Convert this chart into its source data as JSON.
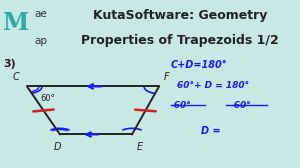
{
  "bg_color": "#c8e8e5",
  "header_bg": "#e0e0e0",
  "header_title_line1": "KutaSoftware: Geometry",
  "header_title_line2": "Properties of Trapezoids 1/2",
  "logo_M_color": "#2aaca0",
  "problem_number": "3)",
  "trap_C": [
    0.09,
    0.73
  ],
  "trap_F": [
    0.53,
    0.73
  ],
  "trap_D": [
    0.2,
    0.3
  ],
  "trap_E": [
    0.44,
    0.3
  ],
  "annotations_color": "#1a1aff",
  "tick_color": "#cc2222",
  "arrow_color": "#1a1aff",
  "line_color": "#222222",
  "ann1": "C+D=180°",
  "ann2": "60°+ D = 180°",
  "ann3_left": "-60°",
  "ann3_right": "-60°",
  "ann4": "D ="
}
